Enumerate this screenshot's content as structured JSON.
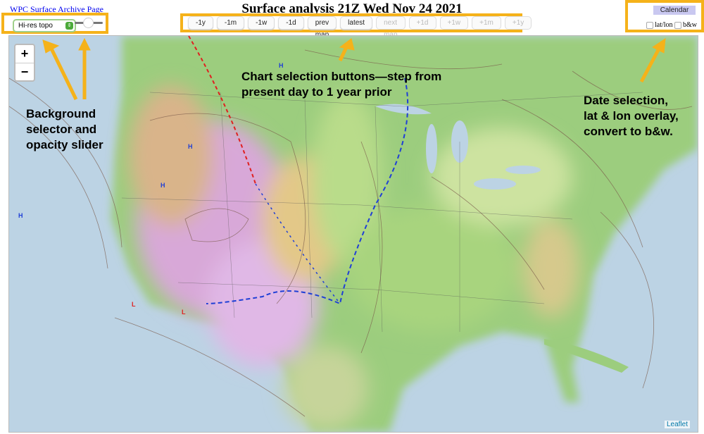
{
  "header": {
    "archive_link": "WPC Surface Archive Page",
    "title": "Surface analysis 21Z Wed Nov 24 2021"
  },
  "background_selector": {
    "value": "Hi-res topo",
    "opacity_fraction": 0.45
  },
  "nav_buttons": [
    {
      "label": "-1y",
      "enabled": true
    },
    {
      "label": "-1m",
      "enabled": true
    },
    {
      "label": "-1w",
      "enabled": true
    },
    {
      "label": "-1d",
      "enabled": true
    },
    {
      "label": "prev map",
      "enabled": true
    },
    {
      "label": "latest",
      "enabled": true
    },
    {
      "label": "next map",
      "enabled": false
    },
    {
      "label": "+1d",
      "enabled": false
    },
    {
      "label": "+1w",
      "enabled": false
    },
    {
      "label": "+1m",
      "enabled": false
    },
    {
      "label": "+1y",
      "enabled": false
    }
  ],
  "date_panel": {
    "calendar": "Calendar",
    "latlon": "lat/lon",
    "bw": "b&w",
    "latlon_checked": false,
    "bw_checked": false
  },
  "map": {
    "zoom_in": "+",
    "zoom_out": "−",
    "attribution": "Leaflet"
  },
  "annotations": {
    "background": [
      "Background",
      "selector and",
      "opacity slider"
    ],
    "chart": [
      "Chart selection buttons—step from",
      "present day to 1 year prior"
    ],
    "date": [
      "Date selection,",
      "lat & lon overlay,",
      "convert to b&w."
    ]
  },
  "colors": {
    "highlight": "#f5b21a",
    "cold_front": "#1f3fd6",
    "warm_front": "#e02020"
  }
}
